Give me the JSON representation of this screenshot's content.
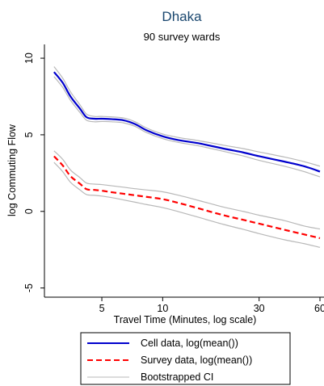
{
  "chart_data": {
    "type": "line",
    "title": "Dhaka",
    "subtitle": "90 survey wards",
    "xlabel": "Travel Time (Minutes, log scale)",
    "ylabel": "log Commuting Flow",
    "x_scale": "log",
    "x_ticks": [
      5,
      10,
      30,
      60
    ],
    "y_ticks": [
      -5,
      0,
      5,
      10
    ],
    "xlim": [
      2.6,
      64
    ],
    "ylim": [
      -5.6,
      10.9
    ],
    "grid": false,
    "legend_position": "bottom",
    "colors": {
      "cell": "#0000cd",
      "survey": "#ff0000",
      "ci": "#b8b8b8",
      "title": "#1a476f"
    },
    "series": [
      {
        "name": "Cell data, log(mean())",
        "style": "solid",
        "x": [
          2.9,
          3.2,
          3.5,
          3.9,
          4.2,
          4.6,
          5.0,
          5.6,
          6.4,
          7.3,
          8.3,
          10,
          12,
          15,
          20,
          25,
          30,
          40,
          50,
          60
        ],
        "y": [
          9.1,
          8.4,
          7.5,
          6.7,
          6.15,
          6.05,
          6.05,
          6.02,
          5.95,
          5.7,
          5.3,
          4.9,
          4.65,
          4.45,
          4.1,
          3.85,
          3.6,
          3.25,
          2.95,
          2.6
        ]
      },
      {
        "name": "Survey data, log(mean())",
        "style": "dashed",
        "x": [
          2.9,
          3.2,
          3.5,
          3.9,
          4.2,
          4.6,
          5.0,
          5.6,
          6.4,
          7.3,
          8.3,
          10,
          12,
          15,
          20,
          25,
          30,
          40,
          50,
          60
        ],
        "y": [
          3.6,
          3.0,
          2.3,
          1.8,
          1.45,
          1.4,
          1.35,
          1.25,
          1.15,
          1.05,
          0.95,
          0.8,
          0.55,
          0.2,
          -0.25,
          -0.55,
          -0.8,
          -1.2,
          -1.5,
          -1.75
        ]
      },
      {
        "name": "Bootstrapped CI",
        "style": "thin",
        "x": [
          2.9,
          3.2,
          3.5,
          3.9,
          4.2,
          4.6,
          5.0,
          5.6,
          6.4,
          7.3,
          8.3,
          10,
          12,
          15,
          20,
          25,
          30,
          40,
          50,
          60
        ],
        "upper_cell": [
          9.45,
          8.7,
          7.8,
          6.95,
          6.35,
          6.2,
          6.2,
          6.17,
          6.1,
          5.85,
          5.45,
          5.05,
          4.82,
          4.62,
          4.32,
          4.1,
          3.88,
          3.55,
          3.25,
          2.95
        ],
        "lower_cell": [
          8.8,
          8.1,
          7.25,
          6.45,
          5.95,
          5.85,
          5.87,
          5.85,
          5.78,
          5.55,
          5.15,
          4.75,
          4.5,
          4.28,
          3.92,
          3.62,
          3.33,
          2.95,
          2.6,
          2.25
        ],
        "upper_survey": [
          3.95,
          3.4,
          2.7,
          2.2,
          1.85,
          1.78,
          1.75,
          1.67,
          1.58,
          1.48,
          1.4,
          1.28,
          1.05,
          0.72,
          0.28,
          0.0,
          -0.25,
          -0.6,
          -0.95,
          -1.15
        ],
        "lower_survey": [
          3.2,
          2.6,
          1.9,
          1.4,
          1.1,
          1.05,
          1.0,
          0.9,
          0.75,
          0.6,
          0.45,
          0.25,
          -0.02,
          -0.38,
          -0.85,
          -1.17,
          -1.45,
          -1.85,
          -2.1,
          -2.35
        ]
      }
    ]
  }
}
